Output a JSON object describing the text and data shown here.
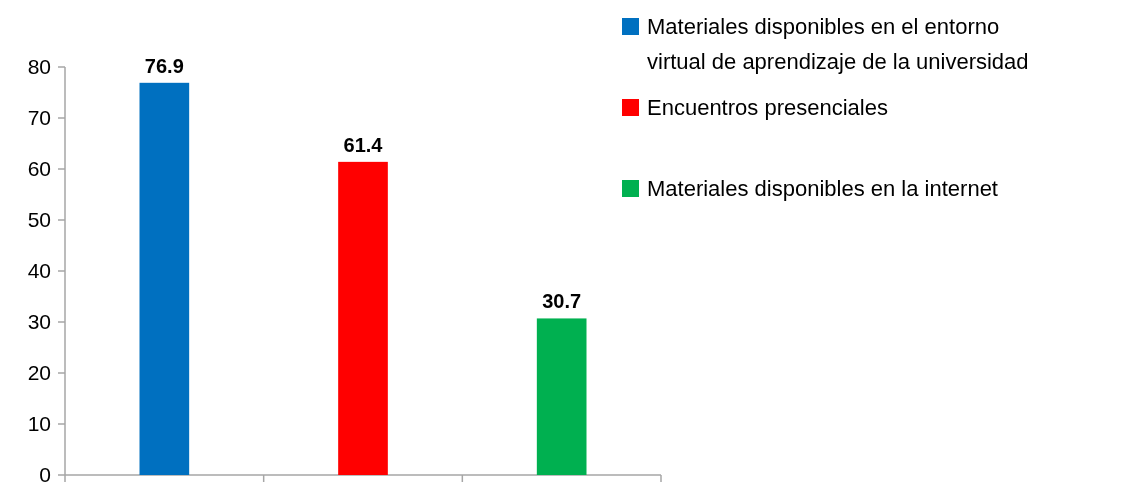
{
  "chart_data": {
    "type": "bar",
    "categories": [
      null,
      null,
      null
    ],
    "series": [
      {
        "name": "Materiales disponibles en el entorno virtual de aprendizaje de la universidad",
        "color": "#0070c0",
        "values": [
          76.9,
          null,
          null
        ]
      },
      {
        "name": "Encuentros presenciales",
        "color": "#ff0000",
        "values": [
          null,
          61.4,
          null
        ]
      },
      {
        "name": "Materiales disponibles en la internet",
        "color": "#00b050",
        "values": [
          null,
          null,
          30.7
        ]
      }
    ],
    "ylim": [
      0,
      80
    ],
    "yticks": [
      0,
      10,
      20,
      30,
      40,
      50,
      60,
      70,
      80
    ],
    "data_labels": true,
    "legend": "top right",
    "tick_labels": "y"
  }
}
